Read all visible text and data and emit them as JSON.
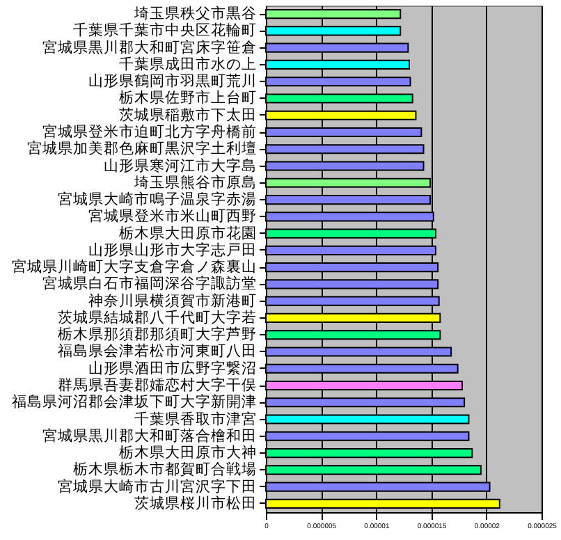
{
  "chart_data": {
    "type": "bar",
    "orientation": "horizontal",
    "categories": [
      "埼玉県秩父市黒谷",
      "千葉県千葉市中央区花輪町",
      "宮城県黒川郡大和町宮床字笹倉",
      "千葉県成田市水の上",
      "山形県鶴岡市羽黒町荒川",
      "栃木県佐野市上台町",
      "茨城県稲敷市下太田",
      "宮城県登米市迫町北方字舟橋前",
      "宮城県加美郡色麻町黒沢字土利壇",
      "山形県寒河江市大字島",
      "埼玉県熊谷市原島",
      "宮城県大崎市鳴子温泉字赤湯",
      "宮城県登米市米山町西野",
      "栃木県大田原市花園",
      "山形県山形市大字志戸田",
      "宮城県川崎町大字支倉字倉ノ森裏山",
      "宮城県白石市福岡深谷字諏訪堂",
      "神奈川県横須賀市新港町",
      "茨城県結城郡八千代町大字若",
      "栃木県那須郡那須町大字芦野",
      "福島県会津若松市河東町八田",
      "山形県酒田市広野字繋沼",
      "群馬県吾妻郡嬬恋村大字干俣",
      "福島県河沼郡会津坂下町大字新開津",
      "千葉県香取市津宮",
      "宮城県黒川郡大和町落合檜和田",
      "栃木県大田原市大神",
      "栃木県栃木市都賀町合戦場",
      "宮城県大崎市古川宮沢字下田",
      "茨城県桜川市松田"
    ],
    "values": [
      1.22e-05,
      1.22e-05,
      1.29e-05,
      1.3e-05,
      1.31e-05,
      1.33e-05,
      1.36e-05,
      1.41e-05,
      1.43e-05,
      1.43e-05,
      1.49e-05,
      1.49e-05,
      1.52e-05,
      1.54e-05,
      1.54e-05,
      1.56e-05,
      1.56e-05,
      1.57e-05,
      1.58e-05,
      1.58e-05,
      1.68e-05,
      1.74e-05,
      1.78e-05,
      1.8e-05,
      1.84e-05,
      1.84e-05,
      1.87e-05,
      1.95e-05,
      2.03e-05,
      2.12e-05
    ],
    "colors": [
      "#80ff80",
      "#00ffff",
      "#8080ff",
      "#00ffff",
      "#8080ff",
      "#00ff80",
      "#ffff00",
      "#8080ff",
      "#8080ff",
      "#8080ff",
      "#80ff80",
      "#8080ff",
      "#8080ff",
      "#00ff80",
      "#8080ff",
      "#8080ff",
      "#8080ff",
      "#8080ff",
      "#ffff00",
      "#00ff80",
      "#8080ff",
      "#8080ff",
      "#ff80ff",
      "#8080ff",
      "#00ffff",
      "#8080ff",
      "#00ff80",
      "#00ff80",
      "#8080ff",
      "#ffff00"
    ],
    "xlim": [
      0,
      2.5e-05
    ],
    "xticks": [
      0,
      {
        "value": 5e-06,
        "label": "0.000005"
      },
      {
        "value": 1e-05,
        "label": "0.00001"
      },
      {
        "value": 1.5e-05,
        "label": "0.000015"
      },
      {
        "value": 2e-05,
        "label": "0.00002"
      },
      {
        "value": 2.5e-05,
        "label": "0.000025"
      }
    ],
    "grid": "x"
  }
}
